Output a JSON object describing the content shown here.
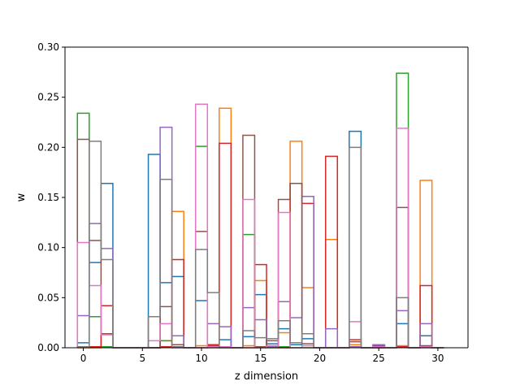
{
  "chart_data": {
    "type": "bar",
    "style": "step-outline",
    "title": "",
    "xlabel": "z dimension",
    "ylabel": "w",
    "xlim": [
      -1.55,
      32.55
    ],
    "ylim": [
      0,
      0.3
    ],
    "xticks": [
      0,
      5,
      10,
      15,
      20,
      25,
      30
    ],
    "xtick_labels": [
      "0",
      "5",
      "10",
      "15",
      "20",
      "25",
      "30"
    ],
    "yticks": [
      0,
      0.05,
      0.1,
      0.15,
      0.2,
      0.25,
      0.3
    ],
    "ytick_labels": [
      "0.00",
      "0.05",
      "0.10",
      "0.15",
      "0.20",
      "0.25",
      "0.30"
    ],
    "grid": false,
    "legend": "none",
    "x": [
      0,
      1,
      2,
      3,
      4,
      5,
      6,
      7,
      8,
      9,
      10,
      11,
      12,
      13,
      14,
      15,
      16,
      17,
      18,
      19,
      20,
      21,
      22,
      23,
      24,
      25,
      26,
      27,
      28,
      29,
      30
    ],
    "series": [
      {
        "color": "#1f77b4",
        "values": [
          0.005,
          0.085,
          0.164,
          0,
          0,
          0,
          0.193,
          0.065,
          0.071,
          0,
          0.047,
          0.002,
          0.008,
          0,
          0.011,
          0.053,
          0.004,
          0.019,
          0.003,
          0.009,
          0,
          0,
          0,
          0.216,
          0,
          0.002,
          0,
          0.024,
          0,
          0.012,
          0
        ]
      },
      {
        "color": "#ff7f0e",
        "values": [
          0,
          0,
          0.001,
          0,
          0,
          0,
          0,
          0.007,
          0.136,
          0,
          0.002,
          0.003,
          0.239,
          0,
          0.002,
          0.067,
          0.001,
          0.015,
          0.206,
          0.06,
          0,
          0.108,
          0,
          0.003,
          0,
          0,
          0,
          0.002,
          0,
          0.167,
          0
        ]
      },
      {
        "color": "#2ca02c",
        "values": [
          0.234,
          0.031,
          0.001,
          0,
          0,
          0,
          0,
          0.007,
          0.001,
          0,
          0.201,
          0.001,
          0,
          0,
          0.113,
          0,
          0,
          0.001,
          0,
          0,
          0,
          0,
          0,
          0.001,
          0,
          0,
          0,
          0.274,
          0,
          0.001,
          0
        ]
      },
      {
        "color": "#d62728",
        "values": [
          0.001,
          0.001,
          0.042,
          0,
          0,
          0,
          0,
          0.001,
          0.088,
          0,
          0,
          0.003,
          0.204,
          0,
          0,
          0.083,
          0.001,
          0,
          0.164,
          0.144,
          0,
          0.191,
          0,
          0.008,
          0,
          0,
          0,
          0.001,
          0,
          0.062,
          0
        ]
      },
      {
        "color": "#9467bd",
        "values": [
          0.032,
          0.124,
          0.099,
          0,
          0,
          0,
          0,
          0.22,
          0.012,
          0,
          0,
          0.024,
          0.021,
          0,
          0.04,
          0.028,
          0.001,
          0.046,
          0.03,
          0.151,
          0,
          0.019,
          0,
          0.001,
          0,
          0.003,
          0,
          0.037,
          0,
          0.024,
          0
        ]
      },
      {
        "color": "#8c564b",
        "values": [
          0.208,
          0.107,
          0.014,
          0,
          0,
          0,
          0,
          0.041,
          0.003,
          0,
          0.116,
          0,
          0.001,
          0,
          0.212,
          0.001,
          0.007,
          0.148,
          0.164,
          0.004,
          0,
          0,
          0,
          0.006,
          0,
          0,
          0,
          0.14,
          0,
          0.002,
          0
        ]
      },
      {
        "color": "#e377c2",
        "values": [
          0.105,
          0.062,
          0.013,
          0,
          0,
          0,
          0.007,
          0.024,
          0,
          0,
          0.243,
          0.001,
          0.001,
          0,
          0.148,
          0,
          0.002,
          0.135,
          0,
          0.002,
          0,
          0,
          0,
          0.026,
          0,
          0.001,
          0,
          0.219,
          0,
          0.001,
          0
        ]
      },
      {
        "color": "#7f7f7f",
        "values": [
          0.001,
          0.206,
          0.088,
          0,
          0,
          0,
          0.031,
          0.168,
          0.001,
          0,
          0.098,
          0.055,
          0,
          0,
          0.017,
          0.01,
          0.009,
          0.027,
          0.005,
          0.014,
          0,
          0,
          0,
          0.2,
          0,
          0,
          0,
          0.05,
          0,
          0,
          0
        ]
      }
    ]
  }
}
